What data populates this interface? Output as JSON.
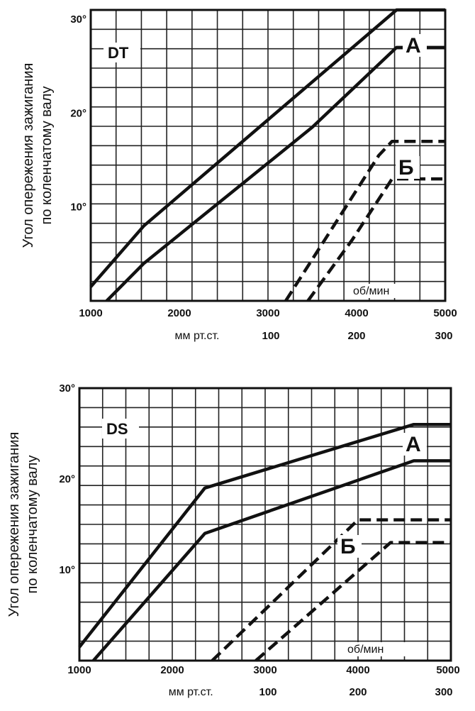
{
  "chart_data": [
    {
      "type": "line",
      "tag": "DT",
      "ylabel_line1": "Угол опережения зажигания",
      "ylabel_line2": "по коленчатому валу",
      "y_ticks": [
        "10°",
        "20°",
        "30°"
      ],
      "x_ticks": [
        "1000",
        "2000",
        "3000",
        "4000",
        "5000"
      ],
      "x2_label": "мм рт.ст.",
      "x2_ticks": [
        "100",
        "200",
        "300"
      ],
      "x2_tick_rpm": [
        3000,
        4000,
        5000
      ],
      "x_unit": "об/мин",
      "xlim": [
        1000,
        5000
      ],
      "ylim": [
        0,
        31
      ],
      "y_tick_values": [
        10,
        20,
        30
      ],
      "grid": true,
      "label_A": "А",
      "label_B": "Б",
      "series": [
        {
          "group": "A",
          "style": "solid",
          "x": [
            1000,
            1600,
            4450,
            5000
          ],
          "y": [
            1.5,
            8,
            31,
            31
          ]
        },
        {
          "group": "A",
          "style": "solid",
          "x": [
            1180,
            1600,
            3500,
            4450,
            5000
          ],
          "y": [
            0,
            4,
            18.5,
            27,
            27
          ]
        },
        {
          "group": "B",
          "style": "dashed",
          "x": [
            3200,
            4250,
            4400,
            5000
          ],
          "y": [
            0,
            15.5,
            17,
            17
          ]
        },
        {
          "group": "B",
          "style": "dashed",
          "x": [
            3450,
            3950,
            4400,
            5000
          ],
          "y": [
            0,
            6.5,
            13,
            13
          ]
        }
      ]
    },
    {
      "type": "line",
      "tag": "DS",
      "ylabel_line1": "Угол опережения зажигания",
      "ylabel_line2": "по коленчатому валу",
      "y_ticks": [
        "10°",
        "20°",
        "30°"
      ],
      "x_ticks": [
        "1000",
        "2000",
        "3000",
        "4000",
        "5000"
      ],
      "x2_label": "мм рт.ст.",
      "x2_ticks": [
        "100",
        "200",
        "300"
      ],
      "x2_tick_rpm": [
        3000,
        4000,
        5000
      ],
      "x_unit": "об/мин",
      "xlim": [
        1000,
        5000
      ],
      "ylim": [
        0,
        30
      ],
      "y_tick_values": [
        10,
        20,
        30
      ],
      "grid": true,
      "label_A": "А",
      "label_B": "Б",
      "series": [
        {
          "group": "A",
          "style": "solid",
          "x": [
            1000,
            2350,
            4600,
            5000
          ],
          "y": [
            1.5,
            19,
            26,
            26
          ]
        },
        {
          "group": "A",
          "style": "solid",
          "x": [
            1150,
            2350,
            4600,
            5000
          ],
          "y": [
            0,
            14,
            22,
            22
          ]
        },
        {
          "group": "B",
          "style": "dashed",
          "x": [
            2430,
            4000,
            5000
          ],
          "y": [
            0,
            15.5,
            15.5
          ]
        },
        {
          "group": "B",
          "style": "dashed",
          "x": [
            2900,
            4350,
            5000
          ],
          "y": [
            0,
            13,
            13
          ]
        }
      ]
    }
  ]
}
